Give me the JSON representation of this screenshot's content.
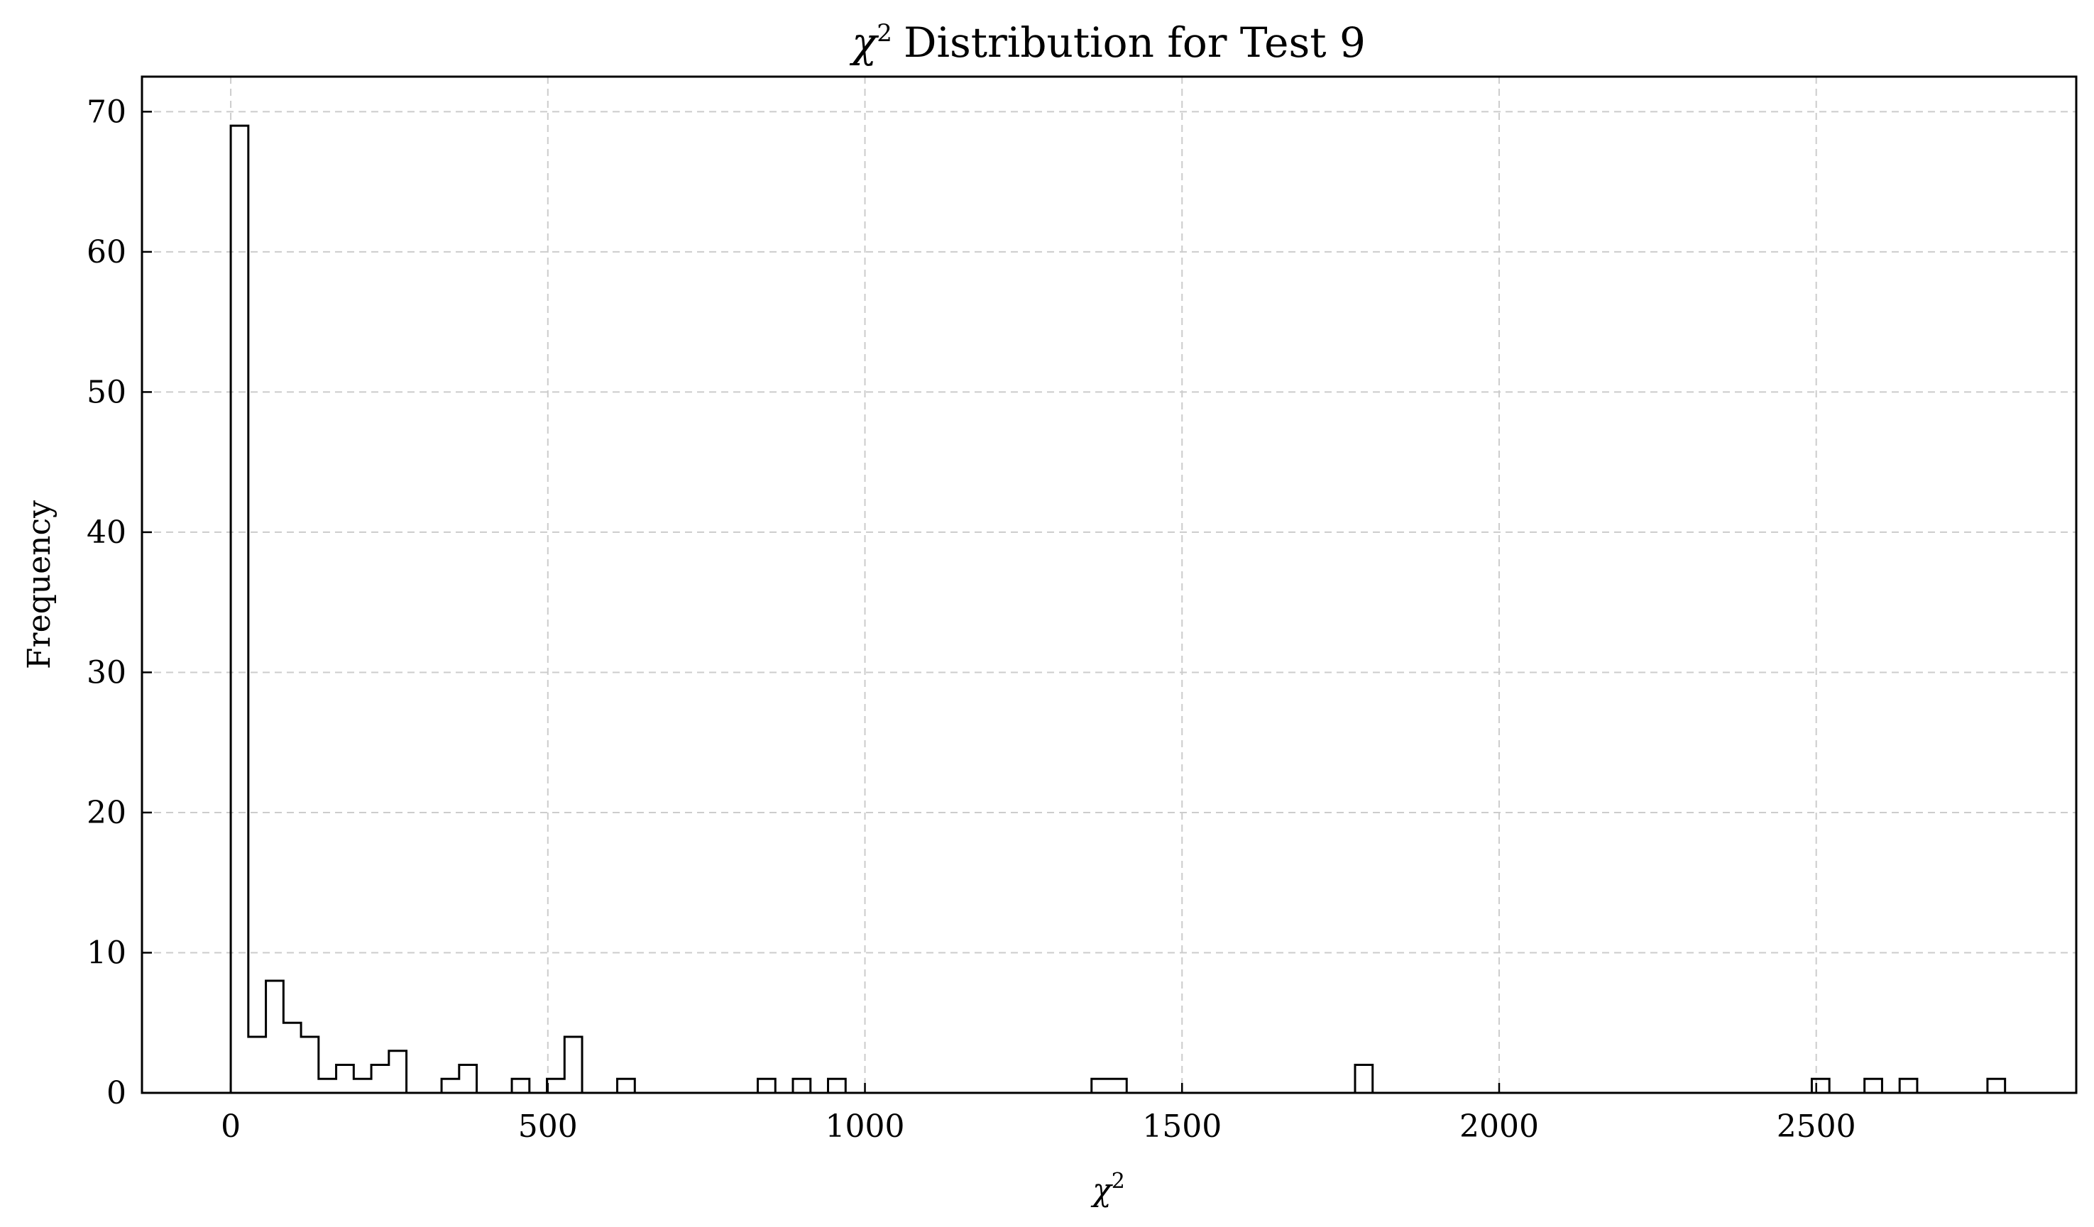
{
  "chart_data": {
    "type": "histogram",
    "title": "Distribution for Test 9",
    "title_symbol": "χ",
    "title_sup": "2",
    "xlabel_symbol": "χ",
    "xlabel_sup": "2",
    "ylabel": "Frequency",
    "xlim": [
      -140,
      2910
    ],
    "ylim": [
      0,
      72.5
    ],
    "xticks": [
      0,
      500,
      1000,
      1500,
      2000,
      2500
    ],
    "yticks": [
      0,
      10,
      20,
      30,
      40,
      50,
      60,
      70
    ],
    "grid": true,
    "bin_start": 0,
    "bin_width": 27.7,
    "counts": [
      69,
      4,
      8,
      5,
      4,
      1,
      2,
      1,
      2,
      3,
      0,
      0,
      1,
      2,
      0,
      0,
      1,
      0,
      1,
      4,
      0,
      0,
      1,
      0,
      0,
      0,
      0,
      0,
      0,
      0,
      1,
      0,
      1,
      0,
      1,
      0,
      0,
      0,
      0,
      0,
      0,
      0,
      0,
      0,
      0,
      0,
      0,
      0,
      0,
      1,
      1,
      0,
      0,
      0,
      0,
      0,
      0,
      0,
      0,
      0,
      0,
      0,
      0,
      0,
      2,
      0,
      0,
      0,
      0,
      0,
      0,
      0,
      0,
      0,
      0,
      0,
      0,
      0,
      0,
      0,
      0,
      0,
      0,
      0,
      0,
      0,
      0,
      0,
      0,
      0,
      1,
      0,
      0,
      1,
      0,
      1,
      0,
      0,
      0,
      0,
      1
    ],
    "line_color": "#000000",
    "grid_color": "#cccccc"
  }
}
